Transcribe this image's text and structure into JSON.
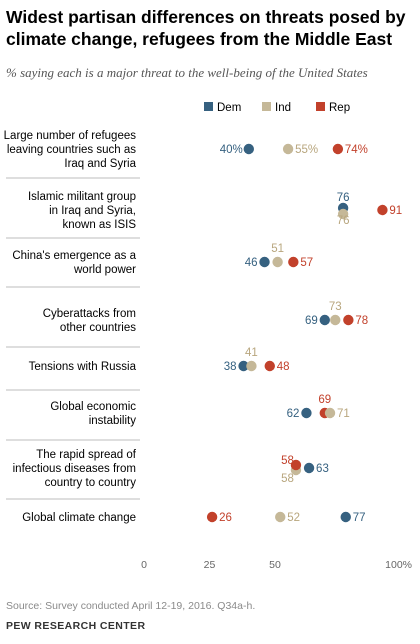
{
  "title": "Widest partisan differences on threats posed by climate change, refugees from the Middle East",
  "subtitle": "% saying each is a major threat to the well-being of the United States",
  "source": "Source: Survey conducted April 12-19, 2016. Q34a-h.",
  "organization": "PEW RESEARCH CENTER",
  "chart_data": {
    "type": "dot",
    "xlim": [
      0,
      100
    ],
    "x_ticks": [
      "0",
      "25",
      "50",
      "100%"
    ],
    "x_tick_values": [
      0,
      25,
      50,
      100
    ],
    "grid": false,
    "legend_position": "top",
    "series": [
      {
        "name": "Dem",
        "color": "#366180"
      },
      {
        "name": "Ind",
        "color": "#c5b898"
      },
      {
        "name": "Rep",
        "color": "#c2412b"
      }
    ],
    "categories": [
      {
        "label": [
          "Large number of refugees",
          "leaving countries such as",
          "Iraq and Syria"
        ],
        "values": {
          "Dem": 40,
          "Ind": 55,
          "Rep": 74
        },
        "value_labels": {
          "Dem": "40%",
          "Ind": "55%",
          "Rep": "74%"
        }
      },
      {
        "label": [
          "Islamic militant group",
          "in Iraq and Syria,",
          "known as ISIS"
        ],
        "values": {
          "Dem": 76,
          "Ind": 76,
          "Rep": 91
        },
        "value_labels": {
          "Dem": "76",
          "Ind": "76",
          "Rep": "91"
        }
      },
      {
        "label": [
          "China's emergence as a",
          "world power"
        ],
        "values": {
          "Dem": 46,
          "Ind": 51,
          "Rep": 57
        },
        "value_labels": {
          "Dem": "46",
          "Ind": "51",
          "Rep": "57"
        }
      },
      {
        "label": [
          "Cyberattacks from",
          "other countries"
        ],
        "values": {
          "Dem": 69,
          "Ind": 73,
          "Rep": 78
        },
        "value_labels": {
          "Dem": "69",
          "Ind": "73",
          "Rep": "78"
        }
      },
      {
        "label": [
          "Tensions with Russia"
        ],
        "values": {
          "Dem": 38,
          "Ind": 41,
          "Rep": 48
        },
        "value_labels": {
          "Dem": "38",
          "Ind": "41",
          "Rep": "48"
        }
      },
      {
        "label": [
          "Global economic",
          "instability"
        ],
        "values": {
          "Dem": 62,
          "Ind": 71,
          "Rep": 69
        },
        "value_labels": {
          "Dem": "62",
          "Ind": "71",
          "Rep": "69"
        }
      },
      {
        "label": [
          "The rapid spread of",
          "infectious diseases from",
          "country to country"
        ],
        "values": {
          "Dem": 63,
          "Ind": 58,
          "Rep": 58
        },
        "value_labels": {
          "Dem": "63",
          "Ind": "58",
          "Rep": "58"
        }
      },
      {
        "label": [
          "Global climate change"
        ],
        "values": {
          "Dem": 77,
          "Ind": 52,
          "Rep": 26
        },
        "value_labels": {
          "Dem": "77",
          "Ind": "52",
          "Rep": "26"
        }
      }
    ]
  }
}
